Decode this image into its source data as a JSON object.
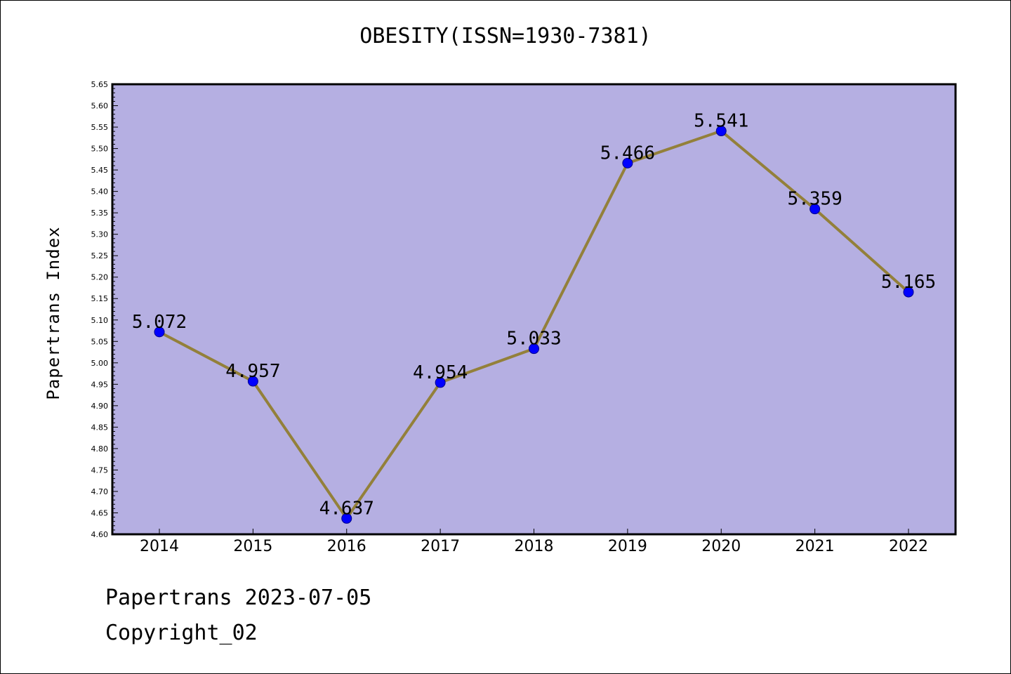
{
  "chart_data": {
    "type": "line",
    "title": "OBESITY(ISSN=1930-7381)",
    "xlabel": "",
    "ylabel": "Papertrans Index",
    "categories": [
      "2014",
      "2015",
      "2016",
      "2017",
      "2018",
      "2019",
      "2020",
      "2021",
      "2022"
    ],
    "series": [
      {
        "values": [
          5.072,
          4.957,
          4.637,
          4.954,
          5.033,
          5.466,
          5.541,
          5.359,
          5.165
        ],
        "labels": [
          "5.072",
          "4.957",
          "4.637",
          "4.954",
          "5.033",
          "5.466",
          "5.541",
          "5.359",
          "5.165"
        ]
      }
    ],
    "ylim": [
      4.6,
      5.65
    ],
    "yticks": [
      "4.60",
      "4.65",
      "4.70",
      "4.75",
      "4.80",
      "4.85",
      "4.90",
      "4.95",
      "5.00",
      "5.05",
      "5.10",
      "5.15",
      "5.20",
      "5.25",
      "5.30",
      "5.35",
      "5.40",
      "5.45",
      "5.50",
      "5.55",
      "5.60",
      "5.65"
    ],
    "grid": false,
    "colors": {
      "plot_background": "#b5afe2",
      "line": "#93803a",
      "marker": "#0000ff",
      "marker_edge": "#00008b"
    }
  },
  "footer": {
    "line1": "Papertrans 2023-07-05",
    "line2": "Copyright_02"
  }
}
